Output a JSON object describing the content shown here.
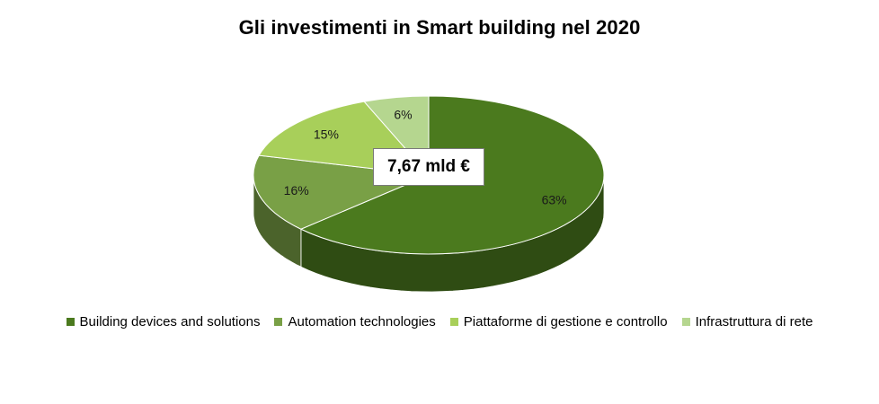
{
  "chart_data": {
    "type": "pie",
    "title": "Gli investimenti in Smart building nel 2020",
    "center_label": "7,67 mld €",
    "slices": [
      {
        "name": "Building devices and solutions",
        "value": 63,
        "label": "63%",
        "color": "#4b7a1e"
      },
      {
        "name": "Automation technologies",
        "value": 16,
        "label": "16%",
        "color": "#79a046"
      },
      {
        "name": "Piattaforme di gestione e controllo",
        "value": 15,
        "label": "15%",
        "color": "#a8cf5a"
      },
      {
        "name": "Infrastruttura di rete",
        "value": 6,
        "label": "6%",
        "color": "#b5d68f"
      }
    ],
    "legend_position": "bottom"
  }
}
